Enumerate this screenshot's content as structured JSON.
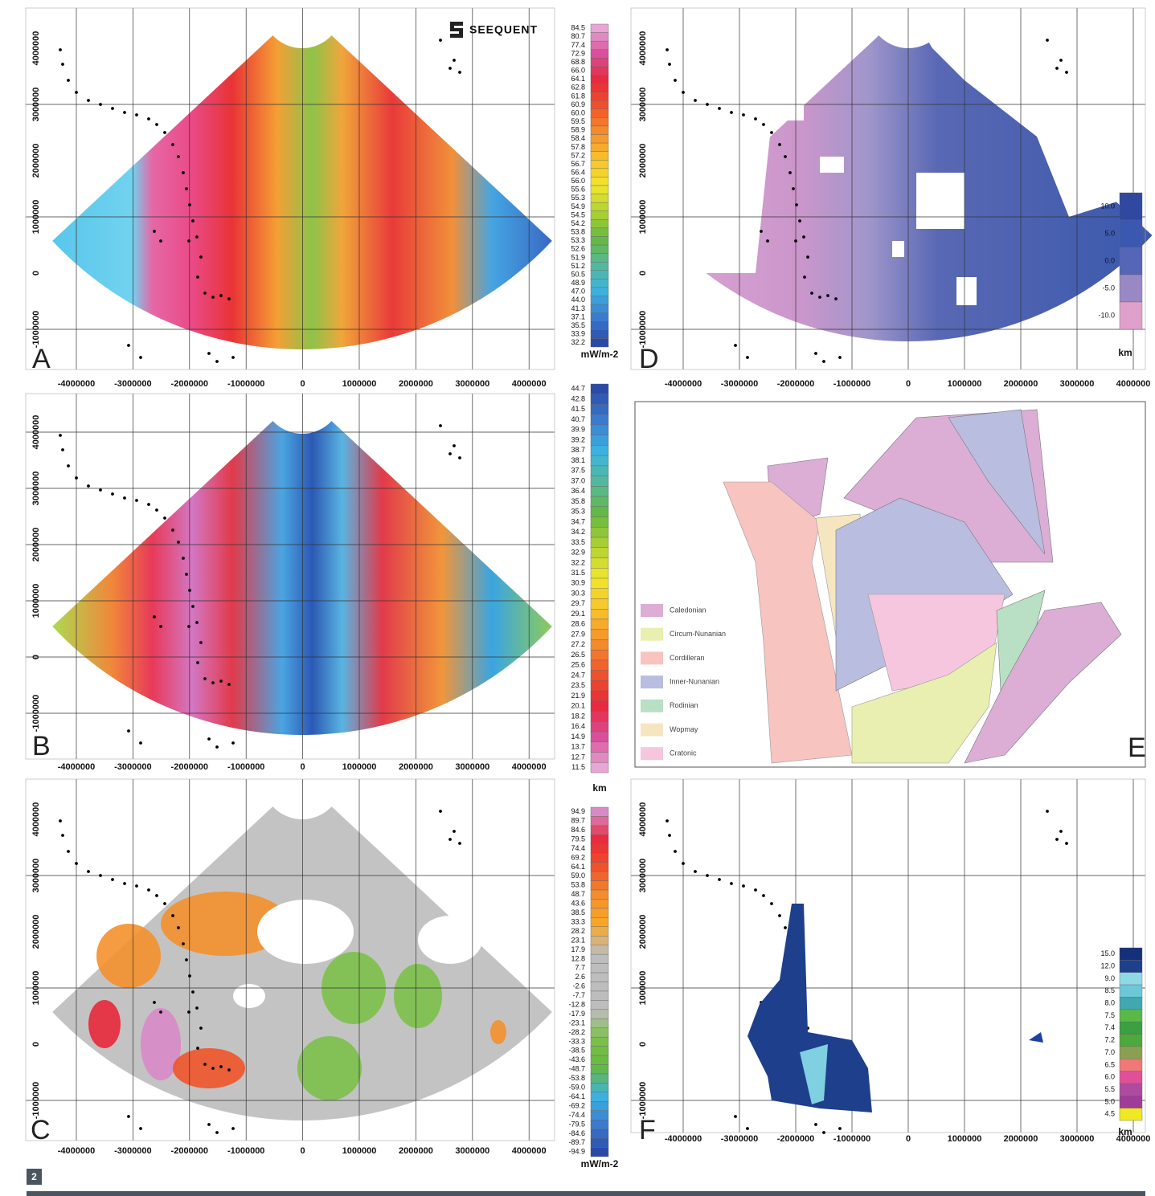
{
  "logo": "SEEQUENT",
  "figure_number": "2",
  "panels": [
    {
      "letter": "A",
      "x_ticks": [
        "-4000000",
        "-3000000",
        "-2000000",
        "-1000000",
        "0",
        "1000000",
        "2000000",
        "3000000",
        "4000000"
      ],
      "y_ticks": [
        "4000000",
        "3000000",
        "2000000",
        "1000000",
        "0",
        "-1000000"
      ],
      "colorbar": {
        "labels": [
          "84.5",
          "80.7",
          "77.4",
          "72.9",
          "68.8",
          "66.0",
          "64.1",
          "62.8",
          "61.8",
          "60.9",
          "60.0",
          "59.5",
          "58.9",
          "58.4",
          "57.8",
          "57.2",
          "56.7",
          "56.4",
          "56.0",
          "55.6",
          "55.3",
          "54.9",
          "54.5",
          "54.2",
          "53.8",
          "53.3",
          "52.6",
          "51.9",
          "51.2",
          "50.5",
          "48.9",
          "47.0",
          "44.0",
          "41.3",
          "37.1",
          "35.5",
          "33.9",
          "32.2"
        ],
        "unit": "mW/m-2"
      }
    },
    {
      "letter": "B",
      "x_ticks": [
        "-4000000",
        "-3000000",
        "-2000000",
        "-1000000",
        "0",
        "1000000",
        "2000000",
        "3000000",
        "4000000"
      ],
      "y_ticks": [
        "4000000",
        "3000000",
        "2000000",
        "1000000",
        "0",
        "-1000000"
      ],
      "colorbar": {
        "labels": [
          "44.7",
          "42.8",
          "41.5",
          "40.7",
          "39.9",
          "39.2",
          "38.7",
          "38.1",
          "37.5",
          "37.0",
          "36.4",
          "35.8",
          "35.3",
          "34.7",
          "34.2",
          "33.5",
          "32.9",
          "32.2",
          "31.5",
          "30.9",
          "30.3",
          "29.7",
          "29.1",
          "28.6",
          "27.9",
          "27.2",
          "26.5",
          "25.6",
          "24.7",
          "23.5",
          "21.9",
          "20.1",
          "18.2",
          "16.4",
          "14.9",
          "13.7",
          "12.7",
          "11.5"
        ],
        "unit": "km"
      }
    },
    {
      "letter": "C",
      "x_ticks": [
        "-4000000",
        "-3000000",
        "-2000000",
        "-1000000",
        "0",
        "1000000",
        "2000000",
        "3000000",
        "4000000"
      ],
      "y_ticks": [
        "4000000",
        "3000000",
        "2000000",
        "1000000",
        "0",
        "-1000000"
      ],
      "colorbar": {
        "labels": [
          "94.9",
          "89.7",
          "84.6",
          "79.5",
          "74.4",
          "69.2",
          "64.1",
          "59.0",
          "53.8",
          "48.7",
          "43.6",
          "38.5",
          "33.3",
          "28.2",
          "23.1",
          "17.9",
          "12.8",
          "7.7",
          "2.6",
          "-2.6",
          "-7.7",
          "-12.8",
          "-17.9",
          "-23.1",
          "-28.2",
          "-33.3",
          "-38.5",
          "-43.6",
          "-48.7",
          "-53.8",
          "-59.0",
          "-64.1",
          "-69.2",
          "-74.4",
          "-79.5",
          "-84.6",
          "-89.7",
          "-94.9"
        ],
        "unit": "mW/m-2"
      }
    },
    {
      "letter": "D",
      "x_ticks": [
        "-4000000",
        "-3000000",
        "-2000000",
        "-1000000",
        "0",
        "1000000",
        "2000000",
        "3000000",
        "4000000"
      ],
      "y_ticks": [
        "4000000",
        "3000000",
        "2000000",
        "1000000",
        "0",
        "-1000000"
      ],
      "colorbar": {
        "labels": [
          "10.0",
          "5.0",
          "0.0",
          "-5.0",
          "-10.0"
        ],
        "unit": "km"
      }
    },
    {
      "letter": "E",
      "legend": [
        "Caledonian",
        "Circum-Nunanian",
        "Cordilleran",
        "Inner-Nunanian",
        "Rodinian",
        "Wopmay",
        "Cratonic"
      ]
    },
    {
      "letter": "F",
      "x_ticks": [
        "-4000000",
        "-3000000",
        "-2000000",
        "-1000000",
        "0",
        "1000000",
        "2000000",
        "3000000",
        "4000000"
      ],
      "y_ticks": [
        "4000000",
        "3000000",
        "2000000",
        "1000000",
        "0",
        "-1000000"
      ],
      "colorbar": {
        "labels": [
          "15.0",
          "12.0",
          "9.0",
          "8.5",
          "8.0",
          "7.5",
          "7.4",
          "7.2",
          "7.0",
          "6.5",
          "6.0",
          "5.5",
          "5.0",
          "4.5"
        ],
        "unit": "km"
      }
    }
  ]
}
